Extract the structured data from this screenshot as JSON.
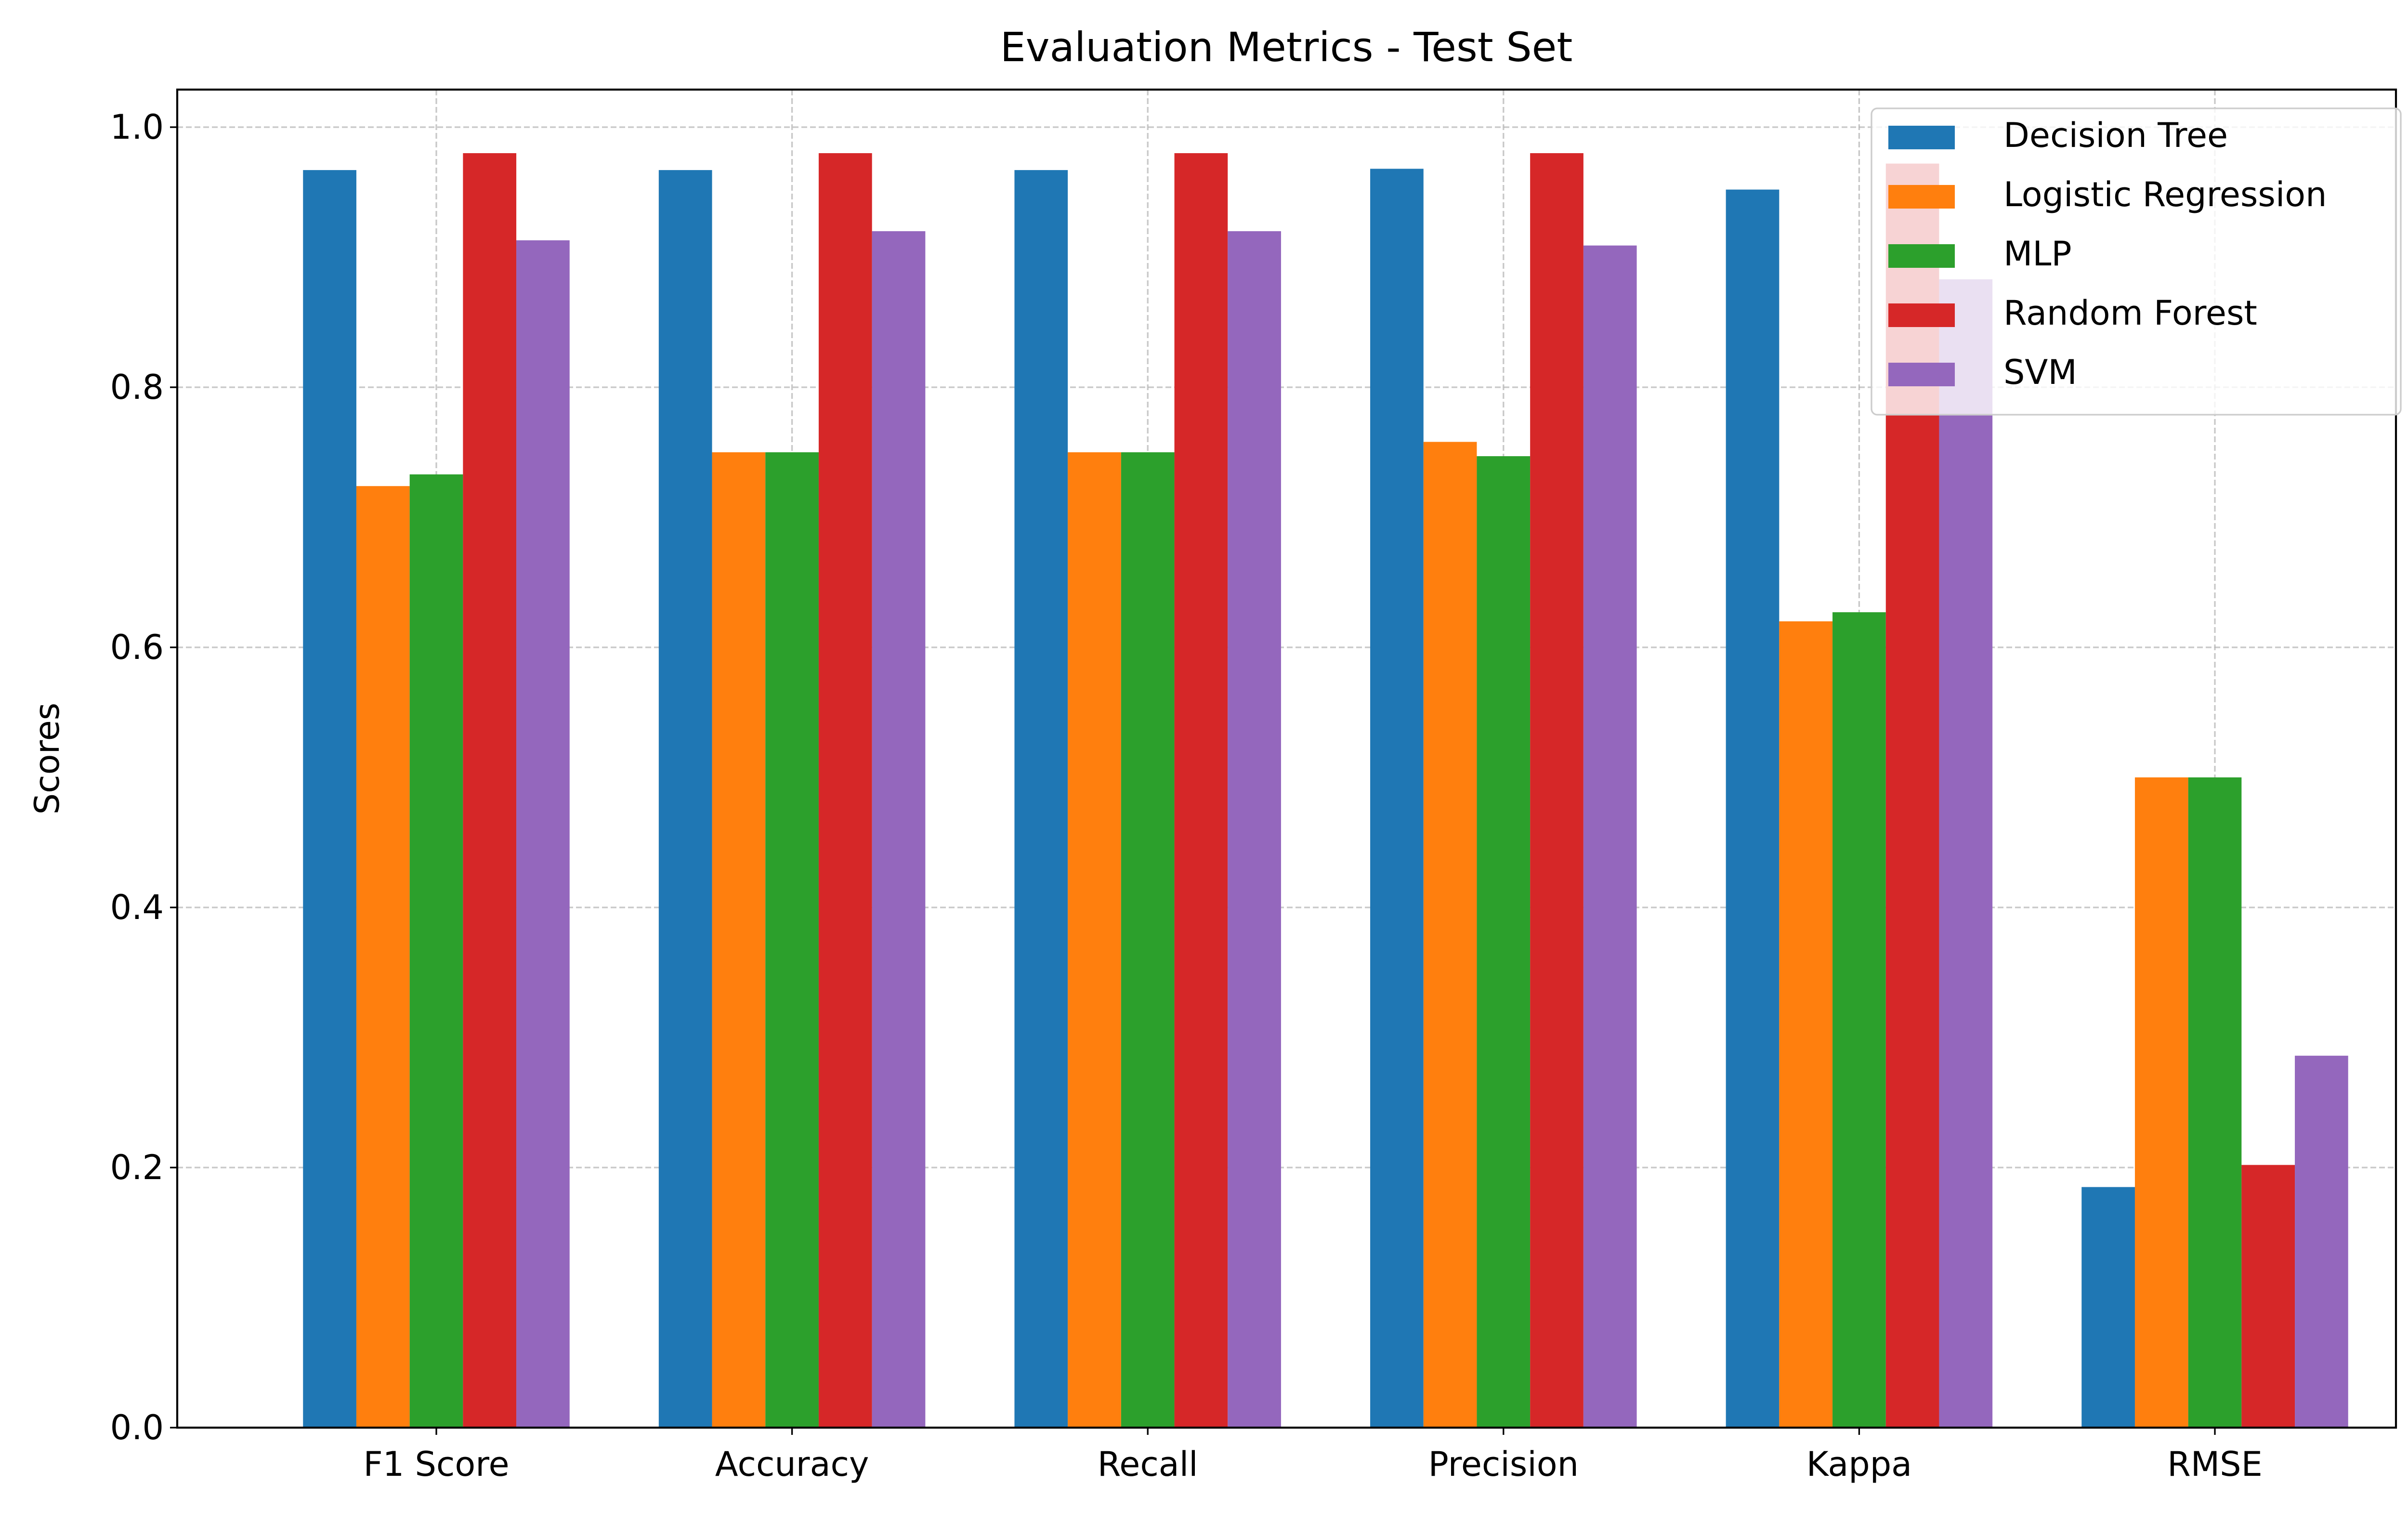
{
  "chart_data": {
    "type": "bar",
    "title": "Evaluation Metrics - Test Set",
    "xlabel": "",
    "ylabel": "Scores",
    "ylim": [
      0,
      1.0
    ],
    "yticks": [
      "0.0",
      "0.2",
      "0.4",
      "0.6",
      "0.8",
      "1.0"
    ],
    "grid": true,
    "legend_position": "top-right",
    "categories": [
      "F1 Score",
      "Accuracy",
      "Recall",
      "Precision",
      "Kappa",
      "RMSE"
    ],
    "series": [
      {
        "name": "Decision Tree",
        "color": "#1f77b4",
        "values": [
          0.967,
          0.967,
          0.967,
          0.968,
          0.952,
          0.185
        ]
      },
      {
        "name": "Logistic Regression",
        "color": "#ff7f0e",
        "values": [
          0.724,
          0.75,
          0.75,
          0.758,
          0.62,
          0.5
        ]
      },
      {
        "name": "MLP",
        "color": "#2ca02c",
        "values": [
          0.733,
          0.75,
          0.75,
          0.747,
          0.627,
          0.5
        ]
      },
      {
        "name": "Random Forest",
        "color": "#d62728",
        "values": [
          0.98,
          0.98,
          0.98,
          0.98,
          0.972,
          0.202
        ]
      },
      {
        "name": "SVM",
        "color": "#9467bd",
        "values": [
          0.913,
          0.92,
          0.92,
          0.909,
          0.883,
          0.286
        ]
      }
    ]
  }
}
